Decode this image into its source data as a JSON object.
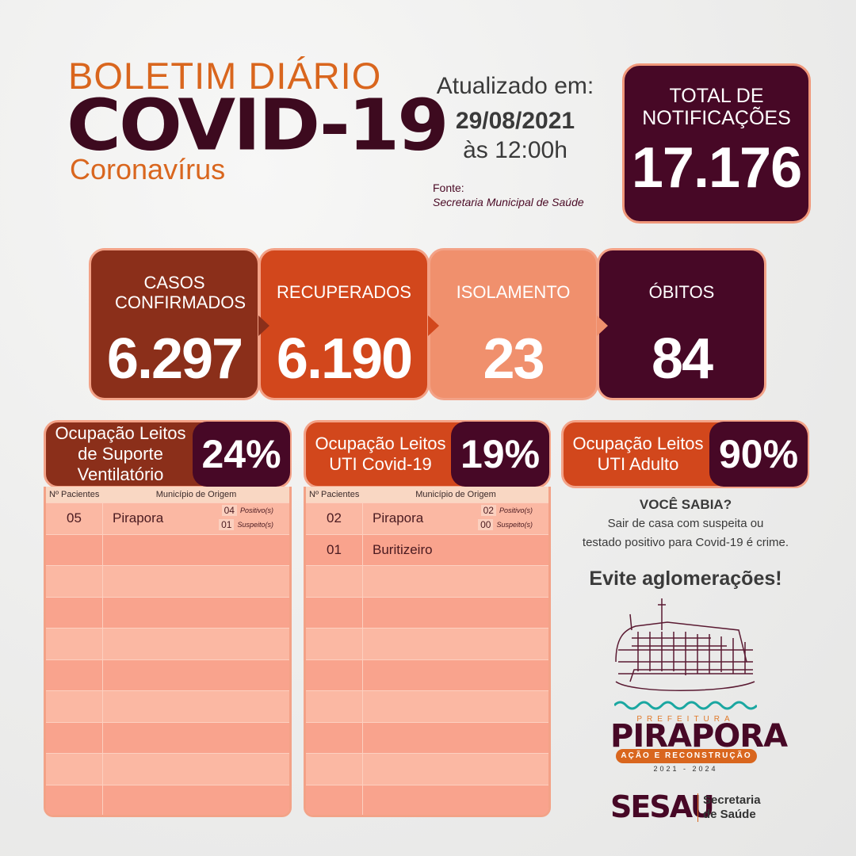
{
  "header": {
    "line1": "BOLETIM DIÁRIO",
    "line2": "COVID-19",
    "line3": "Coronavírus"
  },
  "update": {
    "label": "Atualizado em:",
    "date": "29/08/2021",
    "time": "às 12:00h",
    "source_label": "Fonte:",
    "source": "Secretaria Municipal de Saúde"
  },
  "total": {
    "label": "TOTAL DE NOTIFICAÇÕES",
    "value": "17.176"
  },
  "cards": [
    {
      "label": "CASOS CONFIRMADOS",
      "value": "6.297",
      "color": "#8b2f1a"
    },
    {
      "label": "RECUPERADOS",
      "value": "6.190",
      "color": "#d2471c"
    },
    {
      "label": "ISOLAMENTO",
      "value": "23",
      "color": "#f0906d"
    },
    {
      "label": "ÓBITOS",
      "value": "84",
      "color": "#470826"
    }
  ],
  "occupancy": [
    {
      "label": "Ocupação Leitos de Suporte Ventilatório",
      "percent": "24%",
      "color": "#8b2f1a"
    },
    {
      "label": "Ocupação Leitos UTI Covid-19",
      "percent": "19%",
      "color": "#d2471c"
    },
    {
      "label": "Ocupação Leitos UTI Adulto",
      "percent": "90%",
      "color": "#d2471c"
    }
  ],
  "tables": [
    {
      "headers": [
        "Nº Pacientes",
        "Município de Origem"
      ],
      "rows": [
        {
          "patients": "05",
          "city": "Pirapora",
          "positive": "04",
          "positive_label": "Positivo(s)",
          "suspect": "01",
          "suspect_label": "Suspeito(s)"
        }
      ]
    },
    {
      "headers": [
        "Nº Pacientes",
        "Município de Origem"
      ],
      "rows": [
        {
          "patients": "02",
          "city": "Pirapora",
          "positive": "02",
          "positive_label": "Positivo(s)",
          "suspect": "00",
          "suspect_label": "Suspeito(s)"
        },
        {
          "patients": "01",
          "city": "Buritizeiro"
        }
      ]
    }
  ],
  "info": {
    "title": "VOCÊ SABIA?",
    "text1": "Sair de casa com suspeita ou",
    "text2": "testado positivo para Covid-19 é crime.",
    "slogan": "Evite aglomerações!"
  },
  "logo": {
    "prefeitura": "PREFEITURA",
    "city": "PIRAPORA",
    "tagline": "AÇÃO E RECONSTRUÇÃO",
    "years": "2021 - 2024"
  },
  "sesau": {
    "name": "SESAU",
    "line1": "Secretaria",
    "line2": "de Saúde"
  }
}
